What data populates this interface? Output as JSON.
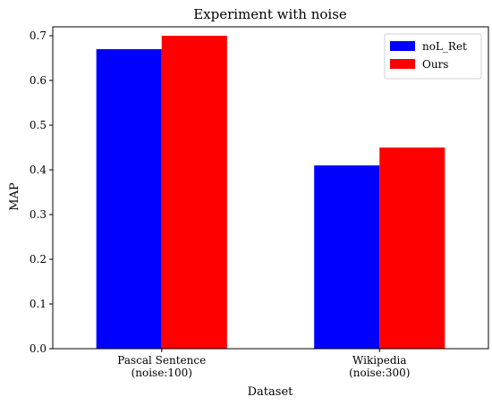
{
  "chart_data": {
    "type": "bar",
    "title": "Experiment with noise",
    "xlabel": "Dataset",
    "ylabel": "MAP",
    "categories": [
      [
        "Pascal Sentence",
        "(noise:100)"
      ],
      [
        "Wikipedia",
        "(noise:300)"
      ]
    ],
    "series": [
      {
        "name": "noL_Ret",
        "color": "#0000ff",
        "values": [
          0.67,
          0.41
        ]
      },
      {
        "name": "Ours",
        "color": "#ff0000",
        "values": [
          0.7,
          0.45
        ]
      }
    ],
    "ylim": [
      0,
      0.72
    ],
    "yticks": [
      0.0,
      0.1,
      0.2,
      0.3,
      0.4,
      0.5,
      0.6,
      0.7
    ],
    "ytick_labels": [
      "0.0",
      "0.1",
      "0.2",
      "0.3",
      "0.4",
      "0.5",
      "0.6",
      "0.7"
    ],
    "legend_position": "top-right",
    "grid": false
  }
}
